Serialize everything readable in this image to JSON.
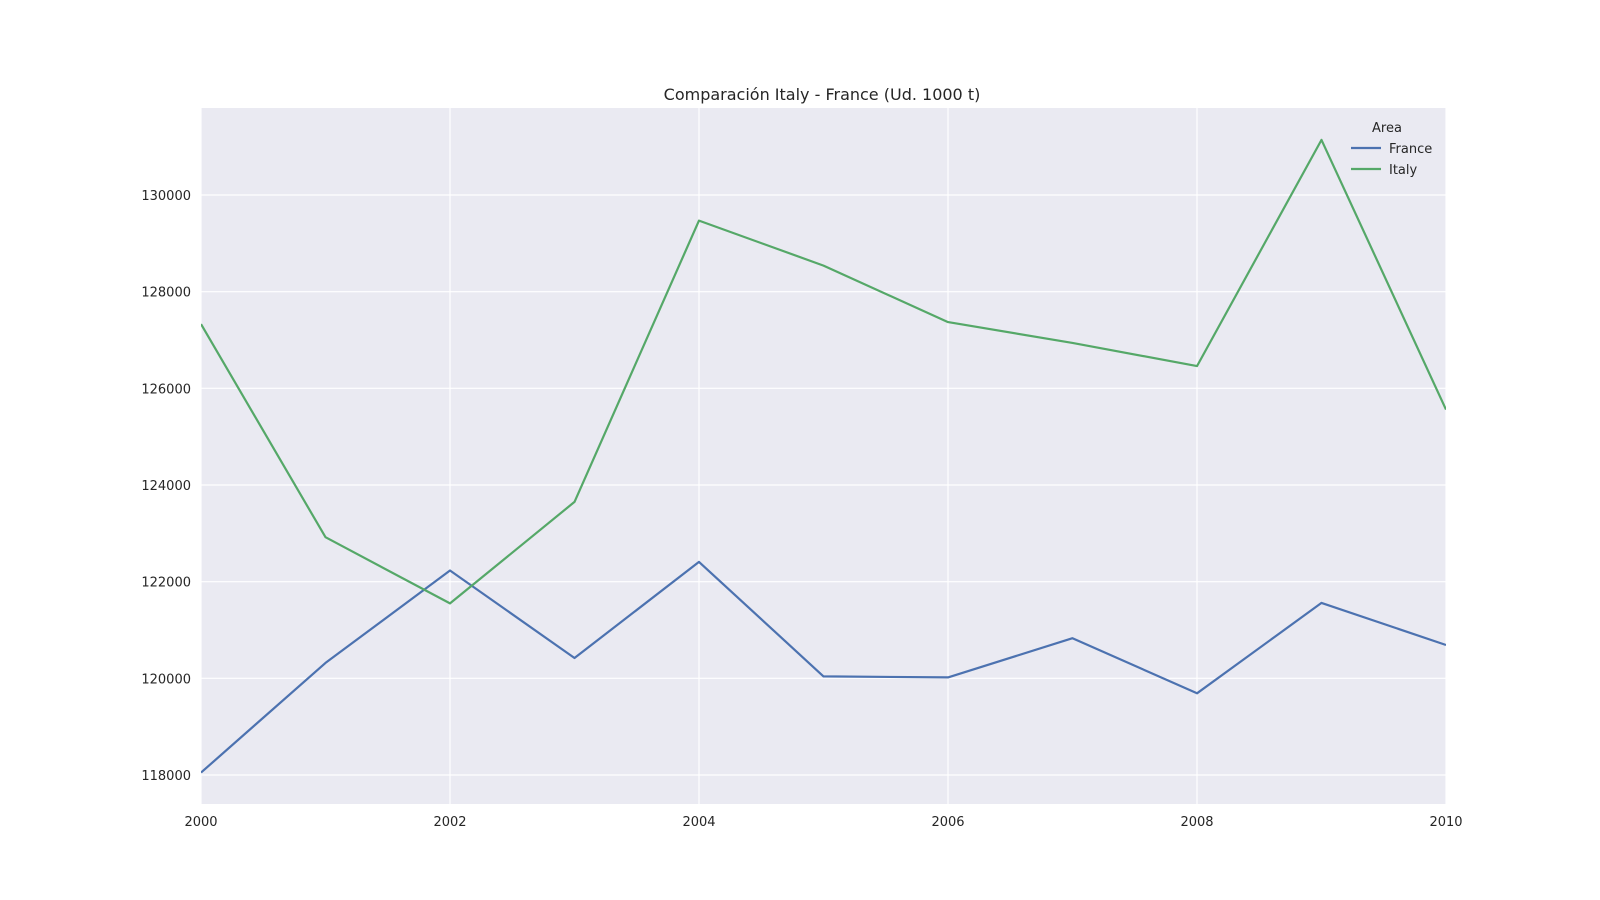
{
  "chart_data": {
    "type": "line",
    "title": "Comparación Italy - France (Ud. 1000 t)",
    "xlabel": "",
    "ylabel": "",
    "x": [
      2000,
      2001,
      2002,
      2003,
      2004,
      2005,
      2006,
      2007,
      2008,
      2009,
      2010
    ],
    "xlim": [
      2000,
      2010
    ],
    "ylim": [
      117400,
      131800
    ],
    "x_ticks": [
      2000,
      2002,
      2004,
      2006,
      2008,
      2010
    ],
    "y_ticks": [
      118000,
      120000,
      122000,
      124000,
      126000,
      128000,
      130000
    ],
    "x_tick_labels": [
      "2000",
      "2002",
      "2004",
      "2006",
      "2008",
      "2010"
    ],
    "y_tick_labels": [
      "118000",
      "120000",
      "122000",
      "124000",
      "126000",
      "128000",
      "130000"
    ],
    "grid": true,
    "legend": {
      "title": "Area",
      "placement": "top-right"
    },
    "series": [
      {
        "name": "France",
        "color": "#4c72b0",
        "values": [
          118050,
          120320,
          122230,
          120420,
          122410,
          120040,
          120020,
          120830,
          119690,
          121560,
          120690
        ]
      },
      {
        "name": "Italy",
        "color": "#55a868",
        "values": [
          127330,
          122920,
          121550,
          123650,
          129470,
          128540,
          127370,
          126940,
          126460,
          131140,
          125560
        ]
      }
    ],
    "colors": {
      "plot_background": "#eaeaf2",
      "grid": "#ffffff"
    }
  }
}
